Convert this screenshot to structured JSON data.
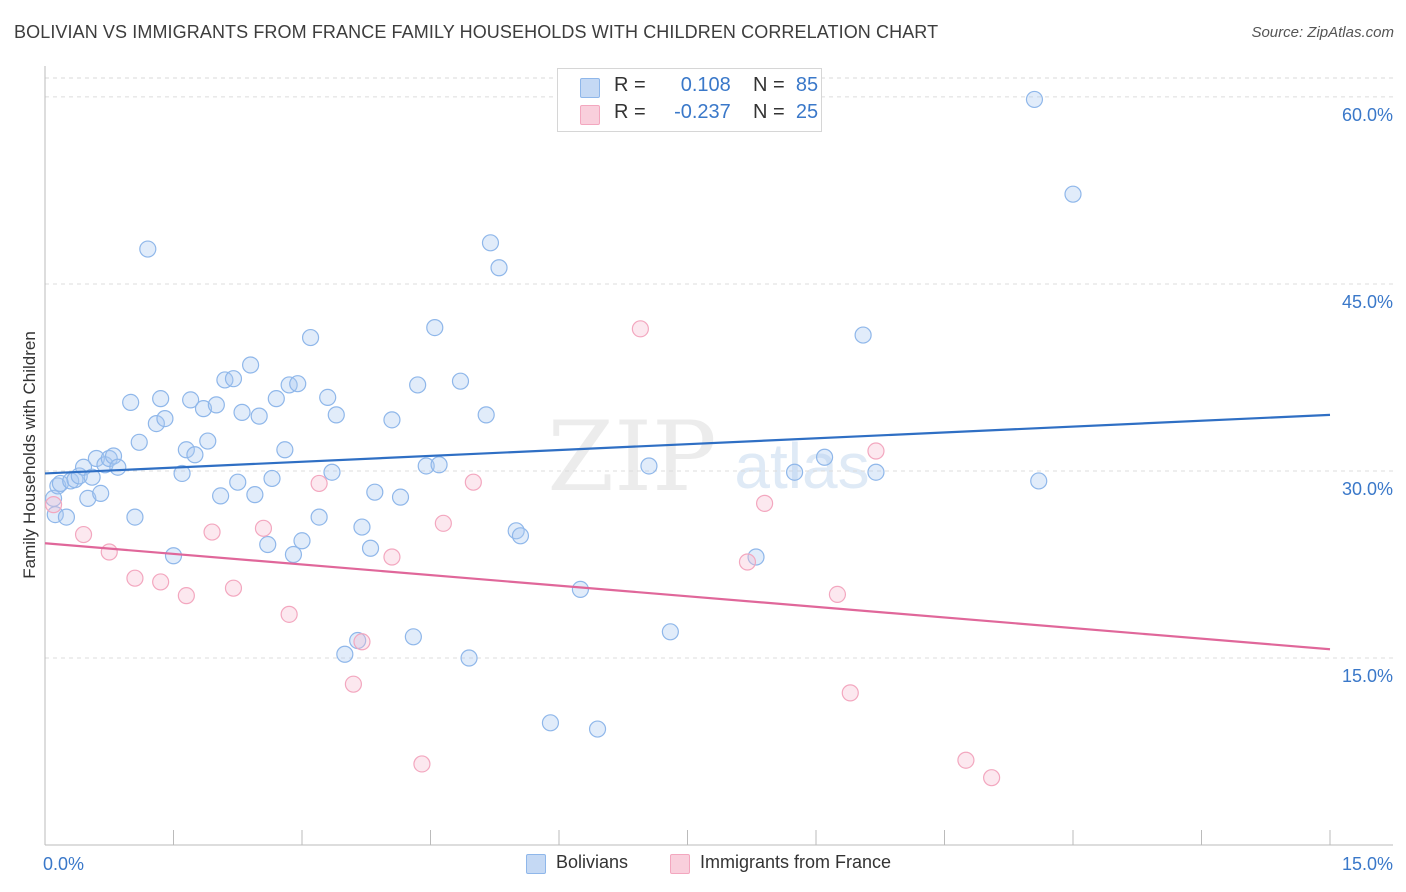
{
  "title": "BOLIVIAN VS IMMIGRANTS FROM FRANCE FAMILY HOUSEHOLDS WITH CHILDREN CORRELATION CHART",
  "source": "Source: ZipAtlas.com",
  "watermark": {
    "zip": "ZIP",
    "atlas": "atlas"
  },
  "legend": {
    "series1": {
      "r_label": "R =",
      "r_value": "0.108",
      "n_label": "N =",
      "n_value": "85"
    },
    "series2": {
      "r_label": "R =",
      "r_value": "-0.237",
      "n_label": "N =",
      "n_value": "25"
    }
  },
  "chart_data": {
    "type": "scatter",
    "title": "BOLIVIAN VS IMMIGRANTS FROM FRANCE FAMILY HOUSEHOLDS WITH CHILDREN CORRELATION CHART",
    "xlabel": "",
    "ylabel": "Family Households with Children",
    "xlim": [
      0,
      15
    ],
    "ylim": [
      0,
      62
    ],
    "x_tick_labels": [
      "0.0%",
      "15.0%"
    ],
    "y_ticks": [
      15,
      30,
      45,
      60
    ],
    "y_tick_labels": [
      "15.0%",
      "30.0%",
      "45.0%",
      "60.0%"
    ],
    "grid": true,
    "colors": {
      "Bolivians": "#8fb7ea",
      "Immigrants from France": "#f3a7bf",
      "blue_line": "#2f6fc4",
      "pink_line": "#e0679a",
      "axis_text": "#3a78c9"
    },
    "series": [
      {
        "name": "Bolivians",
        "trend": {
          "x": [
            0,
            15
          ],
          "y": [
            29.8,
            34.5
          ]
        },
        "points": [
          [
            0.1,
            27.8
          ],
          [
            0.12,
            26.5
          ],
          [
            0.15,
            28.8
          ],
          [
            0.18,
            29.0
          ],
          [
            0.25,
            26.3
          ],
          [
            0.3,
            29.2
          ],
          [
            0.35,
            29.3
          ],
          [
            0.4,
            29.6
          ],
          [
            0.45,
            30.3
          ],
          [
            0.5,
            27.8
          ],
          [
            0.55,
            29.5
          ],
          [
            0.6,
            31.0
          ],
          [
            0.65,
            28.2
          ],
          [
            0.7,
            30.5
          ],
          [
            0.75,
            31.0
          ],
          [
            0.8,
            31.2
          ],
          [
            0.85,
            30.3
          ],
          [
            1.0,
            35.5
          ],
          [
            1.05,
            26.3
          ],
          [
            1.1,
            32.3
          ],
          [
            1.2,
            47.8
          ],
          [
            1.3,
            33.8
          ],
          [
            1.35,
            35.8
          ],
          [
            1.4,
            34.2
          ],
          [
            1.5,
            23.2
          ],
          [
            1.6,
            29.8
          ],
          [
            1.65,
            31.7
          ],
          [
            1.7,
            35.7
          ],
          [
            1.75,
            31.3
          ],
          [
            1.85,
            35.0
          ],
          [
            1.9,
            32.4
          ],
          [
            2.0,
            35.3
          ],
          [
            2.05,
            28.0
          ],
          [
            2.1,
            37.3
          ],
          [
            2.2,
            37.4
          ],
          [
            2.25,
            29.1
          ],
          [
            2.3,
            34.7
          ],
          [
            2.4,
            38.5
          ],
          [
            2.45,
            28.1
          ],
          [
            2.5,
            34.4
          ],
          [
            2.6,
            24.1
          ],
          [
            2.65,
            29.4
          ],
          [
            2.7,
            35.8
          ],
          [
            2.8,
            31.7
          ],
          [
            2.85,
            36.9
          ],
          [
            2.9,
            23.3
          ],
          [
            2.95,
            37.0
          ],
          [
            3.0,
            24.4
          ],
          [
            3.1,
            40.7
          ],
          [
            3.2,
            26.3
          ],
          [
            3.3,
            35.9
          ],
          [
            3.35,
            29.9
          ],
          [
            3.4,
            34.5
          ],
          [
            3.5,
            15.3
          ],
          [
            3.65,
            16.4
          ],
          [
            3.7,
            25.5
          ],
          [
            3.8,
            23.8
          ],
          [
            3.85,
            28.3
          ],
          [
            4.05,
            34.1
          ],
          [
            4.15,
            27.9
          ],
          [
            4.3,
            16.7
          ],
          [
            4.35,
            36.9
          ],
          [
            4.45,
            30.4
          ],
          [
            4.55,
            41.5
          ],
          [
            4.6,
            30.5
          ],
          [
            4.85,
            37.2
          ],
          [
            4.95,
            15.0
          ],
          [
            5.15,
            34.5
          ],
          [
            5.2,
            48.3
          ],
          [
            5.3,
            46.3
          ],
          [
            5.5,
            25.2
          ],
          [
            5.55,
            24.8
          ],
          [
            5.9,
            9.8
          ],
          [
            6.25,
            20.5
          ],
          [
            6.45,
            9.3
          ],
          [
            7.05,
            30.4
          ],
          [
            7.3,
            17.1
          ],
          [
            8.3,
            23.1
          ],
          [
            8.75,
            29.9
          ],
          [
            9.1,
            31.1
          ],
          [
            9.55,
            40.9
          ],
          [
            9.7,
            29.9
          ],
          [
            11.55,
            59.8
          ],
          [
            11.6,
            29.2
          ],
          [
            12.0,
            52.2
          ]
        ]
      },
      {
        "name": "Immigrants from France",
        "trend": {
          "x": [
            0,
            15
          ],
          "y": [
            24.2,
            15.7
          ]
        },
        "points": [
          [
            0.1,
            27.3
          ],
          [
            0.45,
            24.9
          ],
          [
            0.75,
            23.5
          ],
          [
            1.05,
            21.4
          ],
          [
            1.35,
            21.1
          ],
          [
            1.65,
            20.0
          ],
          [
            1.95,
            25.1
          ],
          [
            2.2,
            20.6
          ],
          [
            2.55,
            25.4
          ],
          [
            2.85,
            18.5
          ],
          [
            3.2,
            29.0
          ],
          [
            3.6,
            12.9
          ],
          [
            3.7,
            16.3
          ],
          [
            4.05,
            23.1
          ],
          [
            4.4,
            6.5
          ],
          [
            4.65,
            25.8
          ],
          [
            5.0,
            29.1
          ],
          [
            6.95,
            41.4
          ],
          [
            8.2,
            22.7
          ],
          [
            8.4,
            27.4
          ],
          [
            9.25,
            20.1
          ],
          [
            9.4,
            12.2
          ],
          [
            9.7,
            31.6
          ],
          [
            10.75,
            6.8
          ],
          [
            11.05,
            5.4
          ]
        ]
      }
    ]
  },
  "bottom_legend": {
    "items": [
      "Bolivians",
      "Immigrants from France"
    ]
  }
}
